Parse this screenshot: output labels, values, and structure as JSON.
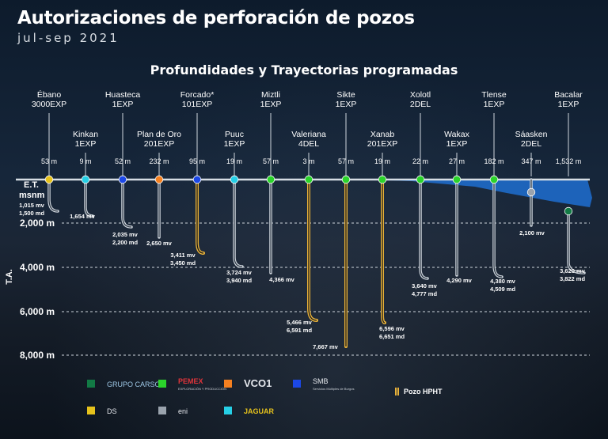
{
  "title": "Autorizaciones de perforación de pozos",
  "subtitle": "jul-sep 2021",
  "heading": "Profundidades y Trayectorias programadas",
  "axis": {
    "reference_line1": "E.T.",
    "reference_line2": "msnm",
    "ta_label": "T.A.",
    "depth_ticks": [
      "2,000 m",
      "4,000 m",
      "6,000 m",
      "8,000 m"
    ]
  },
  "colors": {
    "Carso": "#127a45",
    "Pemex": "#2bd32b",
    "VCO1": "#f58020",
    "SMB": "#1c48e6",
    "DS": "#e6c21c",
    "Eni": "#9aa3ad",
    "Jaguar": "#26cfe6",
    "hpht": "#e8b23a",
    "pipe": "#cfd6dd",
    "water": "#1e6fd1"
  },
  "wells": [
    {
      "name1": "Ébano",
      "name2": "3000EXP",
      "elevation": "53 m",
      "operator": "DS",
      "hpht": false,
      "annotations": [
        "1,015 mv",
        "1,500 md"
      ]
    },
    {
      "name1": "Kinkan",
      "name2": "1EXP",
      "elevation": "9 m",
      "operator": "Jaguar",
      "hpht": false,
      "annotations": [
        "1,654 mv"
      ]
    },
    {
      "name1": "Huasteca",
      "name2": "1EXP",
      "elevation": "52 m",
      "operator": "SMB",
      "hpht": false,
      "annotations": [
        "2,035 mv",
        "2,200 md"
      ]
    },
    {
      "name1": "Plan de Oro",
      "name2": "201EXP",
      "elevation": "232 m",
      "operator": "VCO1",
      "hpht": false,
      "annotations": [
        "2,650 mv"
      ]
    },
    {
      "name1": "Forcado*",
      "name2": "101EXP",
      "elevation": "95 m",
      "operator": "SMB",
      "hpht": true,
      "annotations": [
        "3,411 mv",
        "3,450 md"
      ]
    },
    {
      "name1": "Puuc",
      "name2": "1EXP",
      "elevation": "19 m",
      "operator": "Jaguar",
      "hpht": false,
      "annotations": [
        "3,724 mv",
        "3,940 md"
      ]
    },
    {
      "name1": "Miztli",
      "name2": "1EXP",
      "elevation": "57 m",
      "operator": "Pemex",
      "hpht": false,
      "annotations": [
        "4,366 mv"
      ]
    },
    {
      "name1": "Valeriana",
      "name2": "4DEL",
      "elevation": "3 m",
      "operator": "Pemex",
      "hpht": true,
      "annotations": [
        "5,466 mv",
        "6,591 md"
      ]
    },
    {
      "name1": "Sikte",
      "name2": "1EXP",
      "elevation": "57 m",
      "operator": "Pemex",
      "hpht": true,
      "annotations": [
        "7,667 mv"
      ]
    },
    {
      "name1": "Xanab",
      "name2": "201EXP",
      "elevation": "19 m",
      "operator": "Pemex",
      "hpht": true,
      "annotations": [
        "6,596 mv",
        "6,651 md"
      ]
    },
    {
      "name1": "Xolotl",
      "name2": "2DEL",
      "elevation": "22 m",
      "operator": "Pemex",
      "hpht": false,
      "annotations": [
        "3,640 mv",
        "4,777 md"
      ]
    },
    {
      "name1": "Wakax",
      "name2": "1EXP",
      "elevation": "27 m",
      "operator": "Pemex",
      "hpht": false,
      "annotations": [
        "4,290 mv"
      ]
    },
    {
      "name1": "Tlense",
      "name2": "1EXP",
      "elevation": "182 m",
      "operator": "Pemex",
      "hpht": false,
      "annotations": [
        "4,380 mv",
        "4,509 md"
      ]
    },
    {
      "name1": "Sáasken",
      "name2": "2DEL",
      "elevation": "347 m",
      "operator": "Eni",
      "hpht": false,
      "annotations": [
        "2,100 mv"
      ]
    },
    {
      "name1": "Bacalar",
      "name2": "1EXP",
      "elevation": "1,532 m",
      "operator": "Carso",
      "hpht": false,
      "annotations": [
        "3,620 mv",
        "3,822 md"
      ]
    }
  ],
  "legend": {
    "hpht_label": "Pozo HPHT",
    "operators": [
      {
        "key": "Carso",
        "text": "GRUPO CARSO"
      },
      {
        "key": "Pemex",
        "text": "PEMEX",
        "sub": "EXPLORACIÓN Y PRODUCCIÓN"
      },
      {
        "key": "VCO1",
        "text": "VCO1"
      },
      {
        "key": "SMB",
        "text": "SMB",
        "sub": "Servicios Múltiples de Burgos"
      },
      {
        "key": "DS",
        "text": "DS"
      },
      {
        "key": "Eni",
        "text": "eni"
      },
      {
        "key": "Jaguar",
        "text": "JAGUAR"
      }
    ]
  }
}
